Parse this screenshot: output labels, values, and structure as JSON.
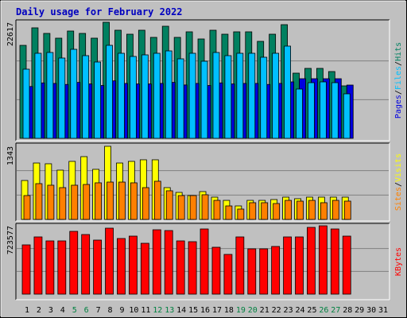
{
  "chart_data": {
    "type": "bar",
    "title": "Daily usage for February 2022",
    "categories": [
      "1",
      "2",
      "3",
      "4",
      "5",
      "6",
      "7",
      "8",
      "9",
      "10",
      "11",
      "12",
      "13",
      "14",
      "15",
      "16",
      "17",
      "18",
      "19",
      "20",
      "21",
      "22",
      "23",
      "24",
      "25",
      "26",
      "27",
      "28",
      "29",
      "30",
      "31"
    ],
    "category_colors": [
      "#000000",
      "#000000",
      "#000000",
      "#000000",
      "#008040",
      "#008040",
      "#000000",
      "#000000",
      "#000000",
      "#000000",
      "#000000",
      "#008040",
      "#008040",
      "#000000",
      "#000000",
      "#000000",
      "#000000",
      "#000000",
      "#008040",
      "#008040",
      "#000000",
      "#000000",
      "#000000",
      "#000000",
      "#000000",
      "#008040",
      "#008040",
      "#000000",
      "#000000",
      "#000000",
      "#000000"
    ],
    "legend_separator": "/",
    "grid": true,
    "panels": [
      {
        "ylim": [
          0,
          22617
        ],
        "yticks": [
          22617
        ],
        "series": [
          {
            "name": "Pages",
            "color": "#0000E0",
            "values": [
              10100,
              10800,
              10700,
              10500,
              10900,
              10600,
              10300,
              11200,
              10700,
              10600,
              10600,
              10700,
              10900,
              10400,
              10700,
              10300,
              10800,
              10600,
              10700,
              10700,
              10500,
              10700,
              11000,
              11618,
              11618,
              11618,
              11618,
              10379,
              null,
              null,
              null
            ]
          },
          {
            "name": "Files",
            "color": "#00C0FF",
            "values": [
              13477,
              16575,
              16730,
              15646,
              17350,
              16111,
              14872,
              18124,
              16575,
              15956,
              16266,
              16575,
              17040,
              15491,
              16575,
              15026,
              16730,
              16111,
              16575,
              16575,
              15801,
              16575,
              17970,
              9605,
              10844,
              10999,
              10844,
              8675,
              null,
              null,
              null
            ]
          },
          {
            "name": "Hits",
            "color": "#008060",
            "values": [
              18120,
              21534,
              20447,
              19520,
              20913,
              20447,
              19520,
              22617,
              21068,
              20293,
              21068,
              19674,
              21843,
              19674,
              20757,
              19364,
              21068,
              20293,
              20757,
              20757,
              18900,
              20293,
              22152,
              12703,
              13632,
              13632,
              13013,
              10224,
              null,
              null,
              null
            ]
          }
        ]
      },
      {
        "ylim": [
          0,
          1343
        ],
        "yticks": [
          1343
        ],
        "series": [
          {
            "name": "Sites",
            "color": "#FF8000",
            "values": [
              438,
              657,
              628,
              584,
              628,
              642,
              672,
              686,
              686,
              672,
              584,
              701,
              526,
              438,
              438,
              453,
              350,
              248,
              190,
              307,
              307,
              292,
              350,
              336,
              350,
              307,
              350,
              336,
              null,
              null,
              null
            ]
          },
          {
            "name": "Visits",
            "color": "#FFFF00",
            "values": [
              715,
              1036,
              1022,
              905,
              1066,
              1153,
              920,
              1343,
              1036,
              1066,
              1095,
              1095,
              584,
              496,
              438,
              511,
              409,
              350,
              248,
              350,
              350,
              365,
              409,
              380,
              409,
              409,
              409,
              409,
              null,
              null,
              null
            ]
          }
        ]
      },
      {
        "ylim": [
          0,
          723577
        ],
        "yticks": [
          723577
        ],
        "series": [
          {
            "name": "KBytes",
            "color": "#FF0000",
            "values": [
              521647,
              605785,
              563716,
              563716,
              664680,
              631025,
              572130,
              698335,
              588957,
              614198,
              538474,
              681507,
              673095,
              563716,
              555302,
              689921,
              496404,
              420684,
              605785,
              479577,
              479577,
              504821,
              605785,
              605785,
              706750,
              723577,
              689921,
              614198,
              null,
              null,
              null
            ]
          }
        ]
      }
    ]
  }
}
